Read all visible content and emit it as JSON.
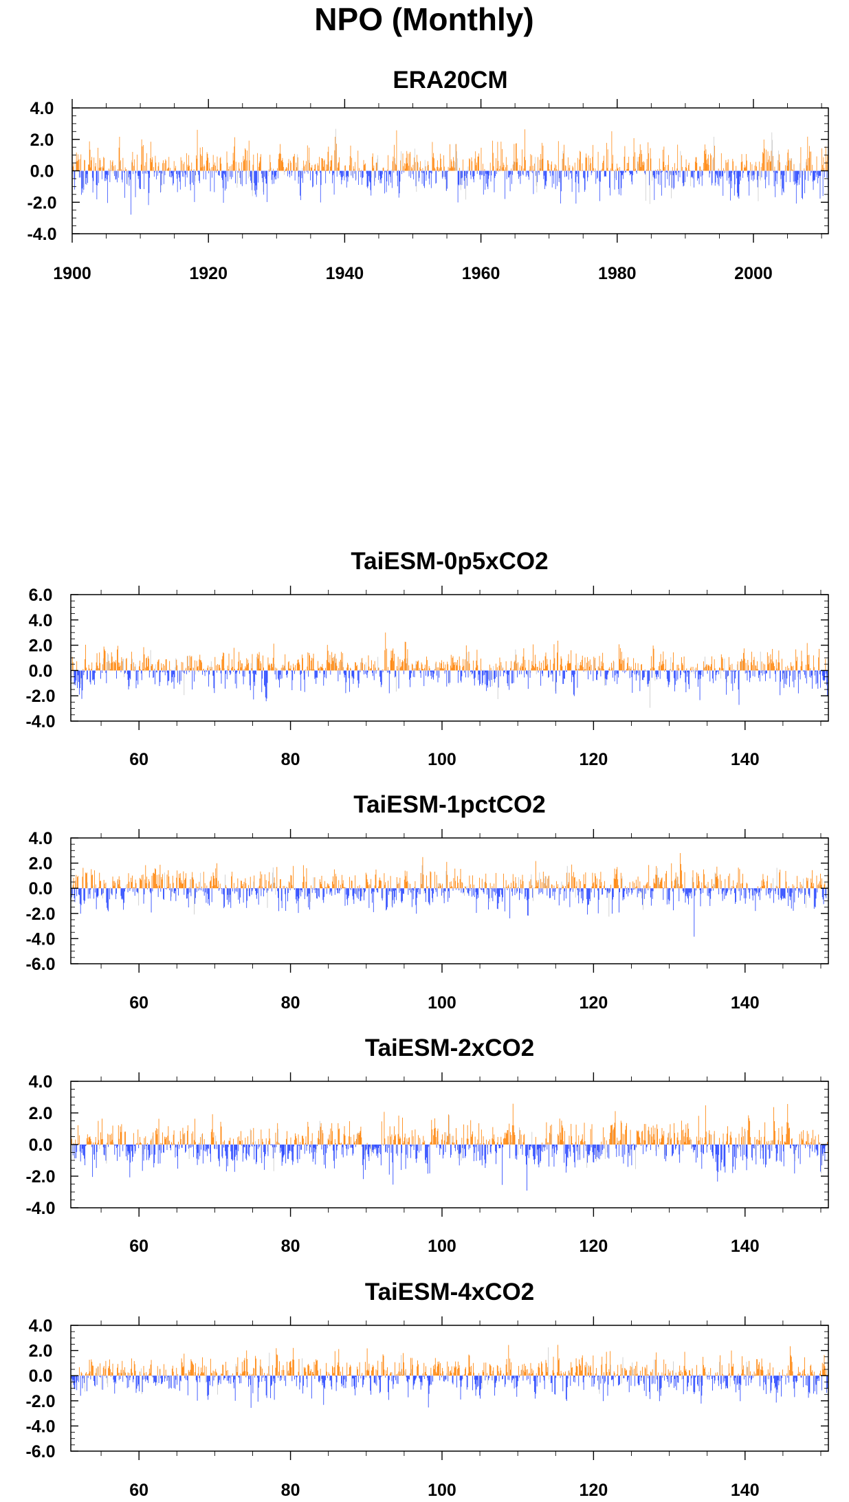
{
  "figure_title": "NPO (Monthly)",
  "colors": {
    "positive": "#ff8000",
    "negative": "#1f3fff",
    "faint": "#c8c8c8",
    "axis": "#000000"
  },
  "chart_data": [
    {
      "type": "bar",
      "title": "ERA20CM",
      "x_range": [
        1900,
        2011
      ],
      "ylim": [
        -4.0,
        4.0
      ],
      "x_ticks": [
        1900,
        1920,
        1940,
        1960,
        1980,
        2000
      ],
      "y_ticks": [
        "4.0",
        "2.0",
        "0.0",
        "-2.0",
        "-4.0"
      ],
      "y_tick_values": [
        4,
        2,
        0,
        -2,
        -4
      ],
      "bar_colors": {
        "positive": "#ff8000",
        "negative": "#1f3fff"
      },
      "approx_extremes": {
        "max": 2.7,
        "min": -3.4
      },
      "seed": 11
    },
    {
      "type": "bar",
      "title": "TaiESM-0p5xCO2",
      "x_range": [
        51,
        151
      ],
      "ylim": [
        -4.0,
        6.0
      ],
      "x_ticks": [
        60,
        80,
        100,
        120,
        140
      ],
      "y_ticks": [
        "6.0",
        "4.0",
        "2.0",
        "0.0",
        "-2.0",
        "-4.0"
      ],
      "y_tick_values": [
        6,
        4,
        2,
        0,
        -2,
        -4
      ],
      "bar_colors": {
        "positive": "#ff8000",
        "negative": "#1f3fff"
      },
      "approx_extremes": {
        "max": 4.0,
        "min": -3.1
      },
      "seed": 23
    },
    {
      "type": "bar",
      "title": "TaiESM-1pctCO2",
      "x_range": [
        51,
        151
      ],
      "ylim": [
        -6.0,
        4.0
      ],
      "x_ticks": [
        60,
        80,
        100,
        120,
        140
      ],
      "y_ticks": [
        "4.0",
        "2.0",
        "0.0",
        "-2.0",
        "-4.0",
        "-6.0"
      ],
      "y_tick_values": [
        4,
        2,
        0,
        -2,
        -4,
        -6
      ],
      "bar_colors": {
        "positive": "#ff8000",
        "negative": "#1f3fff"
      },
      "approx_extremes": {
        "max": 3.0,
        "min": -4.1
      },
      "seed": 37
    },
    {
      "type": "bar",
      "title": "TaiESM-2xCO2",
      "x_range": [
        51,
        151
      ],
      "ylim": [
        -4.0,
        4.0
      ],
      "x_ticks": [
        60,
        80,
        100,
        120,
        140
      ],
      "y_ticks": [
        "4.0",
        "2.0",
        "0.0",
        "-2.0",
        "-4.0"
      ],
      "y_tick_values": [
        4,
        2,
        0,
        -2,
        -4
      ],
      "bar_colors": {
        "positive": "#ff8000",
        "negative": "#1f3fff"
      },
      "approx_extremes": {
        "max": 3.3,
        "min": -3.8
      },
      "seed": 53
    },
    {
      "type": "bar",
      "title": "TaiESM-4xCO2",
      "x_range": [
        51,
        151
      ],
      "ylim": [
        -6.0,
        4.0
      ],
      "x_ticks": [
        60,
        80,
        100,
        120,
        140
      ],
      "y_ticks": [
        "4.0",
        "2.0",
        "0.0",
        "-2.0",
        "-4.0",
        "-6.0"
      ],
      "y_tick_values": [
        4,
        2,
        0,
        -2,
        -4,
        -6
      ],
      "bar_colors": {
        "positive": "#ff8000",
        "negative": "#1f3fff"
      },
      "approx_extremes": {
        "max": 2.9,
        "min": -3.8
      },
      "seed": 71
    }
  ]
}
